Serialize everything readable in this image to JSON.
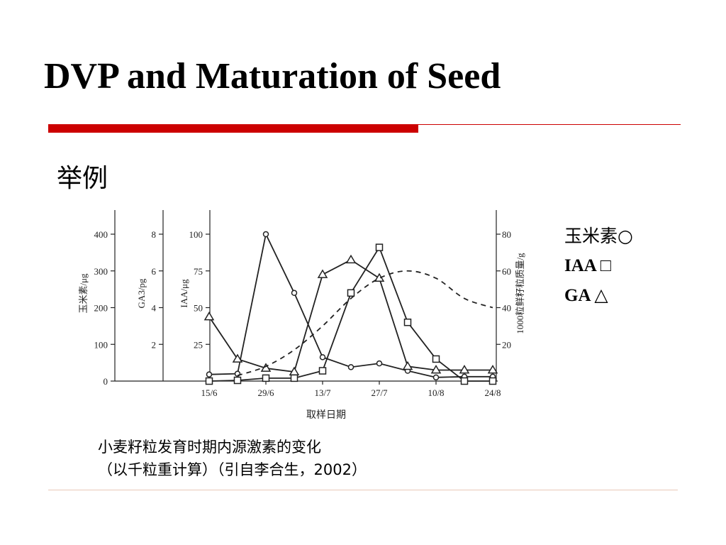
{
  "slide": {
    "title": "DVP and Maturation of Seed",
    "subtitle": "举例",
    "caption_line1": "小麦籽粒发育时期内源激素的变化",
    "caption_line2": "（以千粒重计算）（引自李合生，2002）"
  },
  "legend": {
    "zein": "玉米素○",
    "iaa": "IAA □",
    "ga": "GA △"
  },
  "colors": {
    "accent": "#cc0000",
    "ink": "#222222"
  },
  "chart_data": {
    "type": "line",
    "xlabel": "取样日期",
    "x_ticks": [
      "15/6",
      "29/6",
      "13/7",
      "27/7",
      "10/8",
      "24/8"
    ],
    "x_range": [
      0,
      10
    ],
    "axes": [
      {
        "id": "zein",
        "label": "玉米素/μg",
        "ticks": [
          0,
          100,
          200,
          300,
          400
        ],
        "range": [
          0,
          400
        ]
      },
      {
        "id": "ga",
        "label": "GA3/pg",
        "ticks": [
          2,
          4,
          6,
          8
        ],
        "range": [
          0,
          8
        ]
      },
      {
        "id": "iaa",
        "label": "IAA/μg",
        "ticks": [
          25,
          50,
          75,
          100
        ],
        "range": [
          0,
          100
        ]
      },
      {
        "id": "mass",
        "label": "1000粒鲜籽粒质量/g",
        "ticks": [
          20,
          40,
          60,
          80
        ],
        "range": [
          0,
          80
        ]
      }
    ],
    "series": [
      {
        "name": "玉米素",
        "axis": "zein",
        "marker": "circle",
        "style": "solid",
        "points": [
          [
            0,
            18
          ],
          [
            1,
            20
          ],
          [
            2,
            400
          ],
          [
            3,
            240
          ],
          [
            4,
            65
          ],
          [
            5,
            38
          ],
          [
            6,
            48
          ],
          [
            7,
            28
          ],
          [
            8,
            10
          ],
          [
            9,
            12
          ],
          [
            10,
            12
          ]
        ]
      },
      {
        "name": "IAA",
        "axis": "iaa",
        "marker": "square",
        "style": "solid",
        "points": [
          [
            0,
            0
          ],
          [
            1,
            0.5
          ],
          [
            2,
            2
          ],
          [
            3,
            2
          ],
          [
            4,
            7
          ],
          [
            5,
            60
          ],
          [
            6,
            91
          ],
          [
            7,
            40
          ],
          [
            8,
            15
          ],
          [
            9,
            0
          ],
          [
            10,
            0
          ]
        ]
      },
      {
        "name": "GA",
        "axis": "ga",
        "marker": "triangle",
        "style": "solid",
        "points": [
          [
            0,
            3.5
          ],
          [
            1,
            1.2
          ],
          [
            2,
            0.7
          ],
          [
            3,
            0.5
          ],
          [
            4,
            5.8
          ],
          [
            5,
            6.6
          ],
          [
            6,
            5.6
          ],
          [
            7,
            0.8
          ],
          [
            8,
            0.6
          ],
          [
            9,
            0.6
          ],
          [
            10,
            0.6
          ]
        ]
      },
      {
        "name": "1000粒鲜籽粒质量",
        "axis": "mass",
        "marker": "none",
        "style": "dashed",
        "points": [
          [
            1,
            3
          ],
          [
            2,
            8
          ],
          [
            3,
            17
          ],
          [
            4,
            30
          ],
          [
            5,
            45
          ],
          [
            6,
            56
          ],
          [
            7,
            60
          ],
          [
            8,
            56
          ],
          [
            9,
            45
          ],
          [
            10,
            40
          ]
        ]
      }
    ]
  }
}
